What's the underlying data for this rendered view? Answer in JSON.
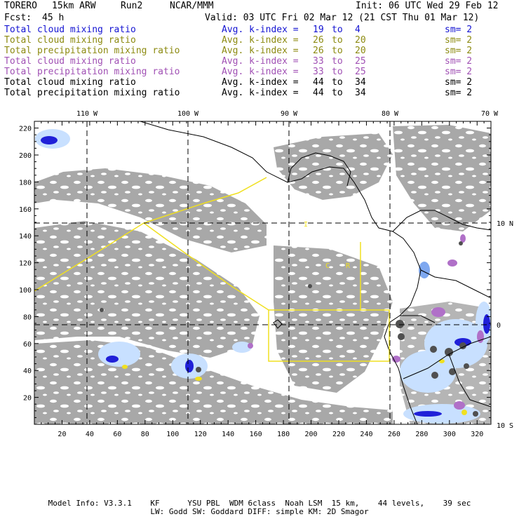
{
  "header": {
    "model": "TORERO",
    "resolution": "15km ARW",
    "run": "Run2",
    "org": "NCAR/MMM",
    "init": "Init: 06 UTC Wed 29 Feb 12",
    "fcst_label": "Fcst:",
    "fcst_value": "45 h",
    "valid": "Valid: 03 UTC Fri 02 Mar 12 (21 CST Thu 01 Mar 12)"
  },
  "legend": [
    {
      "field": "Total cloud mixing ratio",
      "index": "Avg. k-index =",
      "from": "19",
      "to_word": "to",
      "to": "4",
      "sm": "sm= 2",
      "color": "#1414d2"
    },
    {
      "field": "Total cloud mixing ratio",
      "index": "Avg. k-index =",
      "from": "26",
      "to_word": "to",
      "to": "20",
      "sm": "sm= 2",
      "color": "#8c8a10"
    },
    {
      "field": "Total precipitation mixing ratio",
      "index": "Avg. k-index =",
      "from": "26",
      "to_word": "to",
      "to": "20",
      "sm": "sm= 2",
      "color": "#8c8a10"
    },
    {
      "field": "Total cloud mixing ratio",
      "index": "Avg. k-index =",
      "from": "33",
      "to_word": "to",
      "to": "25",
      "sm": "sm= 2",
      "color": "#a050b4"
    },
    {
      "field": "Total precipitation mixing ratio",
      "index": "Avg. k-index =",
      "from": "33",
      "to_word": "to",
      "to": "25",
      "sm": "sm= 2",
      "color": "#a050b4"
    },
    {
      "field": "Total cloud mixing ratio",
      "index": "Avg. k-index =",
      "from": "44",
      "to_word": "to",
      "to": "34",
      "sm": "sm= 2",
      "color": "#000000"
    },
    {
      "field": "Total precipitation mixing ratio",
      "index": "Avg. k-index =",
      "from": "44",
      "to_word": "to",
      "to": "34",
      "sm": "sm= 2",
      "color": "#000000"
    }
  ],
  "axes": {
    "x_ticks": [
      "20",
      "40",
      "60",
      "80",
      "100",
      "120",
      "140",
      "160",
      "180",
      "200",
      "220",
      "240",
      "260",
      "280",
      "300",
      "320"
    ],
    "y_ticks": [
      "20",
      "40",
      "60",
      "80",
      "100",
      "120",
      "140",
      "160",
      "180",
      "200",
      "220"
    ],
    "lon_labels": [
      "110 W",
      "100 W",
      "90 W",
      "80 W",
      "70 W"
    ],
    "lat_labels": [
      "10 N",
      "0",
      "10 S"
    ]
  },
  "map_labels": [
    "I",
    "C",
    "R"
  ],
  "footer": {
    "line1": "Model Info: V3.3.1    KF      YSU PBL  WDM 6class  Noah LSM  15 km,    44 levels,    39 sec",
    "line2": "LW: Godd SW: Goddard DIFF: simple KM: 2D Smagor"
  },
  "colors": {
    "cloud_gray": "#a8a8a8",
    "light_blue": "#c8e0ff",
    "mid_blue": "#7ea8f0",
    "deep_blue": "#2020d8",
    "purple": "#b070c8",
    "dark_gray": "#505050",
    "yellow_line": "#f0e020",
    "coast": "#000000"
  }
}
